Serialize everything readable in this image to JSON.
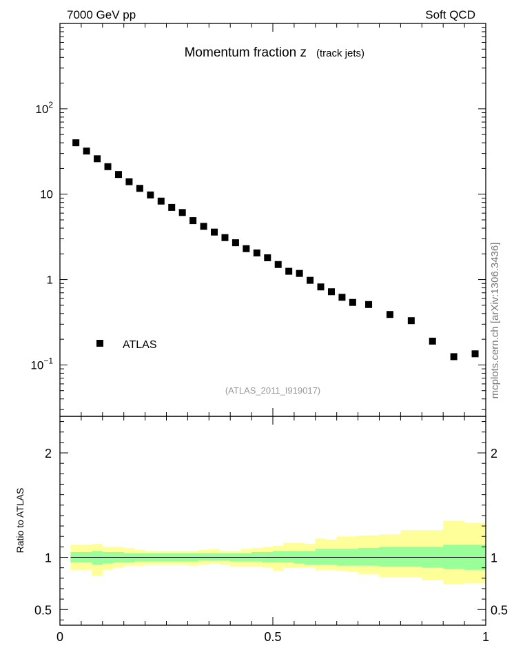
{
  "header": {
    "left": "7000 GeV pp",
    "right": "Soft QCD"
  },
  "side_label": "mcplots.cern.ch [arXiv:1306.3436]",
  "chart_data": [
    {
      "type": "scatter",
      "title": "Momentum fraction z",
      "subtitle": "(track jets)",
      "analysis_id": "(ATLAS_2011_I919017)",
      "xlim": [
        0,
        1
      ],
      "ylim": [
        0.025,
        1000
      ],
      "yscale": "log",
      "yticks": [
        {
          "value": 0.1,
          "base": "10",
          "exp": "−1"
        },
        {
          "value": 1,
          "label": "1"
        },
        {
          "value": 10,
          "label": "10"
        },
        {
          "value": 100,
          "base": "10",
          "exp": "2"
        }
      ],
      "legend": {
        "position": "lower-left",
        "entries": [
          "ATLAS"
        ]
      },
      "series": [
        {
          "name": "ATLAS",
          "color": "#000000",
          "marker": "square",
          "x": [
            0.0375,
            0.0625,
            0.0875,
            0.1125,
            0.1375,
            0.1625,
            0.1875,
            0.2125,
            0.2375,
            0.2625,
            0.2875,
            0.3125,
            0.3375,
            0.3625,
            0.3875,
            0.4125,
            0.4375,
            0.4625,
            0.4875,
            0.5125,
            0.5375,
            0.5625,
            0.5875,
            0.6125,
            0.6375,
            0.6625,
            0.6875,
            0.725,
            0.775,
            0.825,
            0.875,
            0.925,
            0.975
          ],
          "y": [
            40,
            32,
            26,
            21,
            17,
            14,
            11.7,
            9.8,
            8.3,
            7.0,
            6.1,
            4.9,
            4.2,
            3.6,
            3.1,
            2.7,
            2.3,
            2.05,
            1.8,
            1.5,
            1.25,
            1.18,
            0.98,
            0.82,
            0.72,
            0.62,
            0.54,
            0.51,
            0.39,
            0.33,
            0.19,
            0.125,
            0.135
          ]
        }
      ]
    },
    {
      "type": "area",
      "ylabel": "Ratio to ATLAS",
      "xlim": [
        0,
        1
      ],
      "ylim": [
        0.35,
        2.35
      ],
      "xticks": [
        0,
        0.5,
        1
      ],
      "yticks": [
        0.5,
        1,
        2
      ],
      "reference_line": 1,
      "colors": {
        "inner_band": "#99ff99",
        "outer_band": "#ffff99"
      },
      "bin_edges": [
        0.025,
        0.05,
        0.075,
        0.1,
        0.125,
        0.15,
        0.175,
        0.2,
        0.225,
        0.25,
        0.275,
        0.3,
        0.325,
        0.35,
        0.375,
        0.4,
        0.425,
        0.45,
        0.475,
        0.5,
        0.525,
        0.55,
        0.575,
        0.6,
        0.625,
        0.65,
        0.675,
        0.7,
        0.75,
        0.8,
        0.85,
        0.9,
        0.95,
        1.0
      ],
      "inner_band": {
        "lo": [
          0.95,
          0.95,
          0.93,
          0.94,
          0.95,
          0.95,
          0.96,
          0.96,
          0.96,
          0.96,
          0.96,
          0.96,
          0.97,
          0.97,
          0.97,
          0.96,
          0.96,
          0.96,
          0.95,
          0.95,
          0.95,
          0.94,
          0.93,
          0.93,
          0.93,
          0.92,
          0.92,
          0.92,
          0.91,
          0.91,
          0.9,
          0.89,
          0.88
        ],
        "hi": [
          1.05,
          1.05,
          1.06,
          1.05,
          1.05,
          1.04,
          1.04,
          1.04,
          1.04,
          1.04,
          1.04,
          1.04,
          1.04,
          1.04,
          1.04,
          1.04,
          1.04,
          1.05,
          1.05,
          1.06,
          1.06,
          1.06,
          1.06,
          1.08,
          1.08,
          1.08,
          1.08,
          1.09,
          1.1,
          1.1,
          1.1,
          1.12,
          1.12
        ]
      },
      "outer_band": {
        "lo": [
          0.88,
          0.88,
          0.82,
          0.88,
          0.9,
          0.92,
          0.92,
          0.93,
          0.93,
          0.93,
          0.93,
          0.92,
          0.93,
          0.94,
          0.93,
          0.91,
          0.91,
          0.91,
          0.9,
          0.87,
          0.9,
          0.9,
          0.9,
          0.88,
          0.88,
          0.87,
          0.86,
          0.84,
          0.81,
          0.81,
          0.78,
          0.74,
          0.75
        ],
        "hi": [
          1.12,
          1.12,
          1.13,
          1.1,
          1.1,
          1.09,
          1.07,
          1.06,
          1.06,
          1.06,
          1.06,
          1.06,
          1.07,
          1.08,
          1.06,
          1.06,
          1.08,
          1.09,
          1.1,
          1.11,
          1.14,
          1.14,
          1.13,
          1.18,
          1.17,
          1.2,
          1.2,
          1.21,
          1.22,
          1.26,
          1.26,
          1.35,
          1.33
        ]
      }
    }
  ]
}
